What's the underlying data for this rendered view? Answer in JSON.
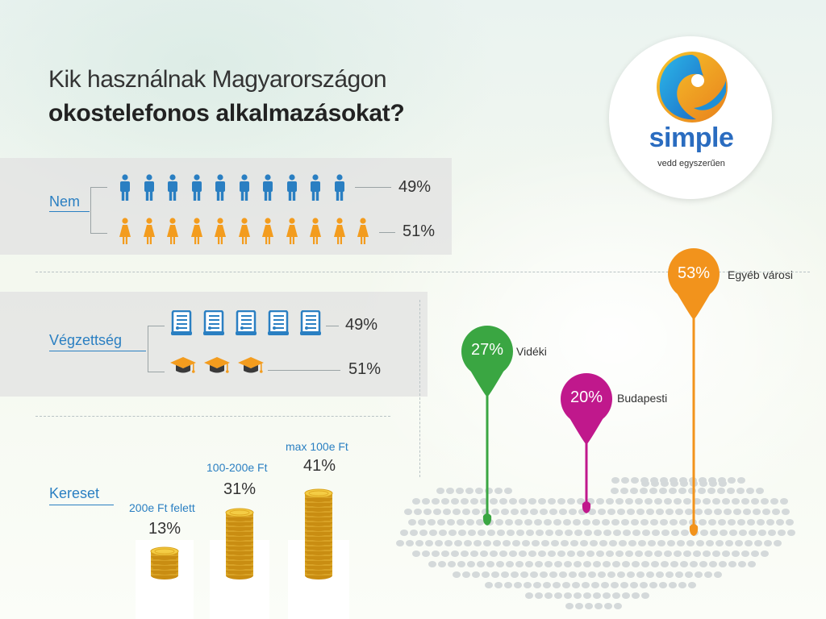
{
  "title": {
    "line1": "Kik használnak Magyarországon",
    "line2": "okostelefonos alkalmazásokat?"
  },
  "logo": {
    "word": "simple",
    "tagline": "vedd egyszerűen"
  },
  "colors": {
    "male": "#2a7fc2",
    "female": "#f39c1e",
    "videki": "#3aa642",
    "budapesti": "#c0188c",
    "egyeb": "#f2931c",
    "label": "#2a7fc2"
  },
  "chart_data": [
    {
      "type": "pictogram",
      "section": "Nem",
      "series": [
        {
          "name": "male",
          "icon": "male-person-icon",
          "icon_count": 10,
          "value": 49,
          "label": "49%"
        },
        {
          "name": "female",
          "icon": "female-person-icon",
          "icon_count": 11,
          "value": 51,
          "label": "51%"
        }
      ]
    },
    {
      "type": "pictogram",
      "section": "Végzettség",
      "series": [
        {
          "name": "diploma",
          "icon": "diploma-document-icon",
          "icon_count": 5,
          "value": 49,
          "label": "49%"
        },
        {
          "name": "graduation",
          "icon": "graduation-cap-icon",
          "icon_count": 3,
          "value": 51,
          "label": "51%"
        }
      ]
    },
    {
      "type": "bar",
      "section": "Kereset",
      "categories": [
        "200e Ft felett",
        "100-200e Ft",
        "max 100e Ft"
      ],
      "values": [
        13,
        31,
        41
      ],
      "labels": [
        "13%",
        "31%",
        "41%"
      ],
      "unit": "%"
    },
    {
      "type": "map-pins",
      "series": [
        {
          "name": "Vidéki",
          "value": 27,
          "label": "27%",
          "color_key": "videki"
        },
        {
          "name": "Budapesti",
          "value": 20,
          "label": "20%",
          "color_key": "budapesti"
        },
        {
          "name": "Egyéb városi",
          "value": 53,
          "label": "53%",
          "color_key": "egyeb"
        }
      ]
    }
  ]
}
